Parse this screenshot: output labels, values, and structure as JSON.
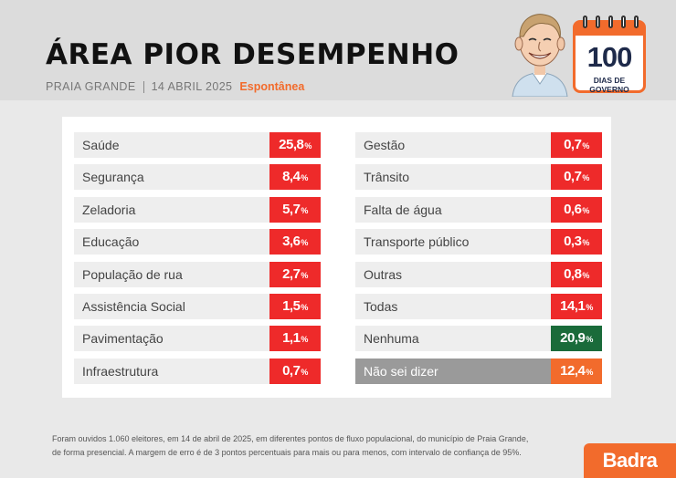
{
  "header": {
    "title": "ÁREA PIOR DESEMPENHO",
    "city": "PRAIA GRANDE",
    "date": "14 ABRIL 2025",
    "kind": "Espontânea"
  },
  "badge": {
    "number": "100",
    "label": "DIAS DE GOVERNO",
    "accent": "#f26b2c"
  },
  "chart_data": {
    "type": "table",
    "unit": "%",
    "categories": [
      "Saúde",
      "Segurança",
      "Zeladoria",
      "Educação",
      "População de rua",
      "Assistência Social",
      "Pavimentação",
      "Infraestrutura",
      "Gestão",
      "Trânsito",
      "Falta de água",
      "Transporte público",
      "Outras",
      "Todas",
      "Nenhuma",
      "Não sei dizer"
    ],
    "values": [
      25.8,
      8.4,
      5.7,
      3.6,
      2.7,
      1.5,
      1.1,
      0.7,
      0.7,
      0.7,
      0.6,
      0.3,
      0.8,
      14.1,
      20.9,
      12.4
    ],
    "display_values": [
      "25,8",
      "8,4",
      "5,7",
      "3,6",
      "2,7",
      "1,5",
      "1,1",
      "0,7",
      "0,7",
      "0,7",
      "0,6",
      "0,3",
      "0,8",
      "14,1",
      "20,9",
      "12,4"
    ],
    "colors": {
      "default": "#ee2a2a",
      "Nenhuma": "#1a6b3a",
      "Não sei dizer": "#f26b2c"
    }
  },
  "footnote": {
    "line1": "Foram ouvidos 1.060 eleitores, em 14 de abril de 2025, em diferentes pontos de fluxo populacional, do município de Praia Grande,",
    "line2": "de forma presencial. A margem de erro é de 3 pontos percentuais para mais ou para menos, com intervalo de confiança de 95%."
  },
  "brand": {
    "name": "Badra"
  },
  "icons": {
    "avatar": "caricature-avatar",
    "calendar": "calendar-icon"
  }
}
